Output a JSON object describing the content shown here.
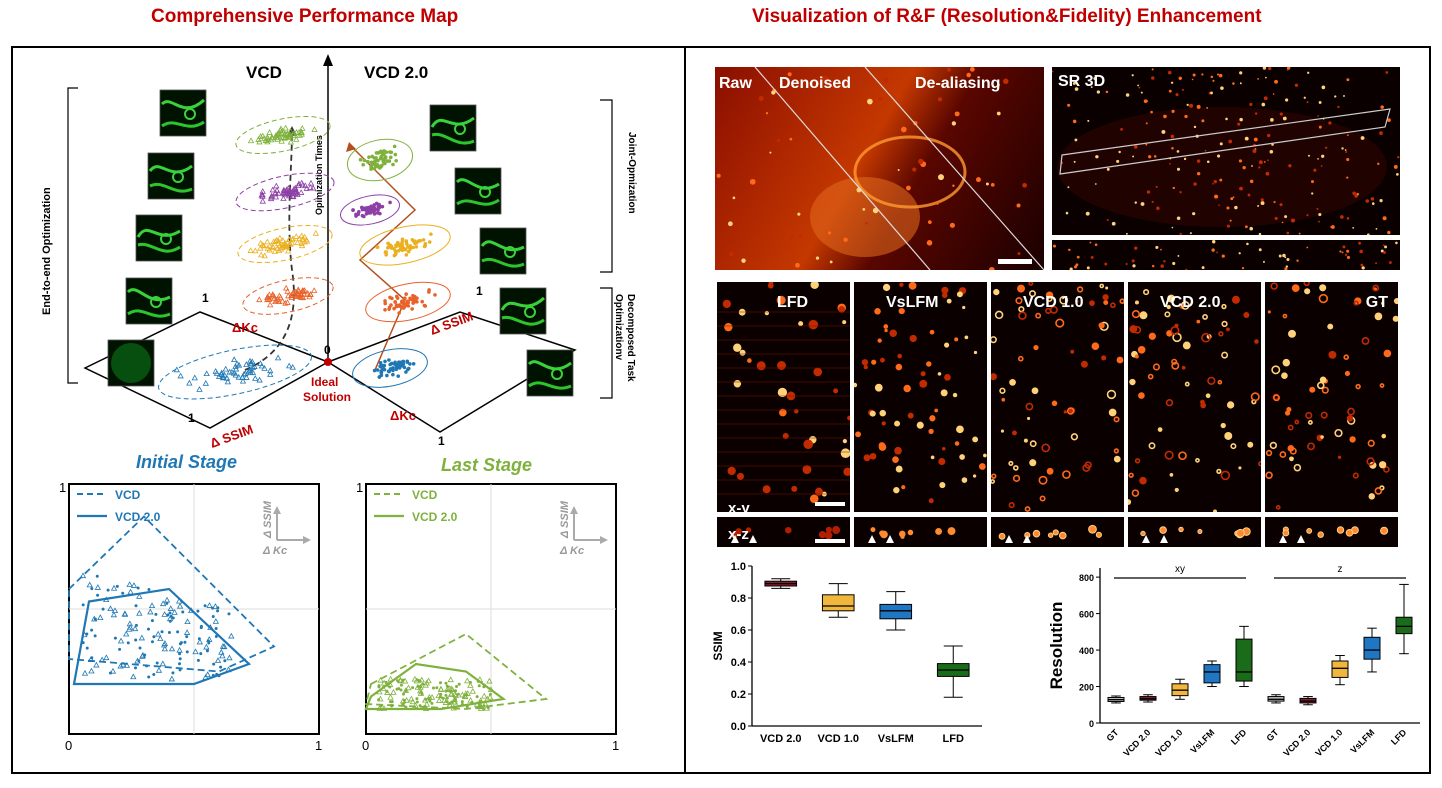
{
  "titles": {
    "left": "Comprehensive Performance Map",
    "right": "Visualization of R&F (Resolution&Fidelity) Enhancement"
  },
  "map3d": {
    "vcd_label": "VCD",
    "vcd2_label": "VCD 2.0",
    "axis_label": "Opimization Times",
    "left_bracket": "End-to-end Optimization",
    "right_bracket_top": "Joint-Opmization",
    "right_bracket_bottom": "Decomposed Task Optimizationv",
    "origin": "0",
    "ideal_line1": "Ideal",
    "ideal_line2": "Solution",
    "one": "1",
    "dkc": "ΔKc",
    "dssim": "Δ SSIM",
    "colors": [
      "#1f77b4",
      "#e8622a",
      "#eab020",
      "#8d3fa6",
      "#7fb13d"
    ]
  },
  "initial_stage": {
    "title": "Initial Stage",
    "legend_dashed": "VCD",
    "legend_solid": "VCD 2.0",
    "axis_y": "Δ SSIM",
    "axis_x": "Δ Kc",
    "tick_top": "1",
    "tick_origin": "0",
    "tick_right": "1",
    "color": "#1f77b4"
  },
  "last_stage": {
    "title": "Last Stage",
    "legend_dashed": "VCD",
    "legend_solid": "VCD 2.0",
    "axis_y": "Δ SSIM",
    "axis_x": "Δ Kc",
    "tick_top": "1",
    "tick_origin": "0",
    "tick_right": "1",
    "color": "#7fb13d"
  },
  "micrographs": {
    "raw": "Raw",
    "denoised": "Denoised",
    "dealiasing": "De-aliasing",
    "sr3d": "SR 3D",
    "panels": [
      "LFD",
      "VsLFM",
      "VCD 1.0",
      "VCD 2.0",
      "GT"
    ],
    "xy": "x-y",
    "xz": "x-z"
  },
  "chart_data": [
    {
      "type": "box",
      "ylabel": "SSIM",
      "categories": [
        "VCD 2.0",
        "VCD 1.0",
        "VsLFM",
        "LFD"
      ],
      "yticks": [
        "0.0",
        "0.2",
        "0.4",
        "0.6",
        "0.8",
        "1.0"
      ],
      "ylim": [
        0,
        1.0
      ],
      "colors": [
        "#8b1c2c",
        "#f0b73c",
        "#1f77c4",
        "#1a6b1a"
      ],
      "boxes": [
        {
          "min": 0.86,
          "q1": 0.875,
          "median": 0.89,
          "q3": 0.905,
          "max": 0.92
        },
        {
          "min": 0.68,
          "q1": 0.72,
          "median": 0.75,
          "q3": 0.82,
          "max": 0.89
        },
        {
          "min": 0.6,
          "q1": 0.67,
          "median": 0.72,
          "q3": 0.76,
          "max": 0.84
        },
        {
          "min": 0.18,
          "q1": 0.31,
          "median": 0.35,
          "q3": 0.39,
          "max": 0.5
        }
      ]
    },
    {
      "type": "box",
      "ylabel": "Resolution",
      "group_labels": [
        "xy",
        "z"
      ],
      "categories": [
        "GT",
        "VCD 2.0",
        "VCD 1.0",
        "VsLFM",
        "LFD",
        "GT",
        "VCD 2.0",
        "VCD 1.0",
        "VsLFM",
        "LFD"
      ],
      "yticks": [
        "0",
        "200",
        "400",
        "600",
        "800"
      ],
      "ylim": [
        0,
        850
      ],
      "colors": [
        "#bbbbbb",
        "#8b1c2c",
        "#f0b73c",
        "#1f77c4",
        "#1a6b1a",
        "#bbbbbb",
        "#8b1c2c",
        "#f0b73c",
        "#1f77c4",
        "#1a6b1a"
      ],
      "boxes": [
        {
          "min": 110,
          "q1": 118,
          "median": 128,
          "q3": 140,
          "max": 148
        },
        {
          "min": 115,
          "q1": 125,
          "median": 133,
          "q3": 145,
          "max": 155
        },
        {
          "min": 130,
          "q1": 150,
          "median": 180,
          "q3": 215,
          "max": 240
        },
        {
          "min": 200,
          "q1": 220,
          "median": 280,
          "q3": 320,
          "max": 340
        },
        {
          "min": 200,
          "q1": 230,
          "median": 280,
          "q3": 460,
          "max": 530
        },
        {
          "min": 110,
          "q1": 120,
          "median": 130,
          "q3": 145,
          "max": 155
        },
        {
          "min": 100,
          "q1": 110,
          "median": 120,
          "q3": 135,
          "max": 145
        },
        {
          "min": 210,
          "q1": 250,
          "median": 300,
          "q3": 340,
          "max": 370
        },
        {
          "min": 280,
          "q1": 350,
          "median": 400,
          "q3": 470,
          "max": 520
        },
        {
          "min": 380,
          "q1": 490,
          "median": 530,
          "q3": 580,
          "max": 760
        }
      ]
    }
  ]
}
